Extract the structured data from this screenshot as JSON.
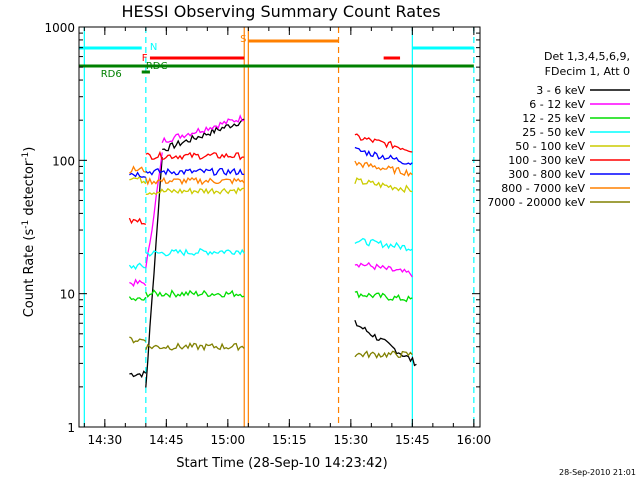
{
  "chart_data": {
    "type": "line",
    "title": "HESSI Observing Summary Count Rates",
    "xlabel": "Start Time (28-Sep-10 14:23:42)",
    "ylabel_main": "Count Rate (s",
    "ylabel_sup1": "-1",
    "ylabel_mid": " detector",
    "ylabel_sup2": "-1",
    "ylabel_end": ")",
    "yscale": "log",
    "xlim": [
      "14:23:42",
      "16:01:30"
    ],
    "ylim": [
      1,
      1000
    ],
    "x_ticks": [
      "14:30",
      "14:45",
      "15:00",
      "15:15",
      "15:30",
      "15:45",
      "16:00"
    ],
    "y_ticks": [
      "1",
      "10",
      "100",
      "1000"
    ],
    "timestamp": "28-Sep-2010 21:01",
    "legend_header": [
      "Det 1,3,4,5,6,9,",
      "FDecim 1, Att 0"
    ],
    "series": [
      {
        "name": "3 - 6 keV",
        "color": "#000000",
        "segments": [
          {
            "t0": "14:36",
            "t1": "14:40",
            "start": 2.5,
            "end": 2.5
          },
          {
            "t0": "14:40",
            "t1": "14:44",
            "start": 2,
            "end": 110
          },
          {
            "t0": "14:44",
            "t1": "15:04",
            "start": 120,
            "end": 200
          },
          {
            "t0": "15:31",
            "t1": "15:46",
            "start": 6,
            "end": 3
          }
        ]
      },
      {
        "name": "6 - 12 keV",
        "color": "#ff00ff",
        "segments": [
          {
            "t0": "14:36",
            "t1": "14:40",
            "start": 12,
            "end": 12
          },
          {
            "t0": "14:40",
            "t1": "14:44",
            "start": 15,
            "end": 110
          },
          {
            "t0": "14:44",
            "t1": "15:04",
            "start": 140,
            "end": 210
          },
          {
            "t0": "15:31",
            "t1": "15:45",
            "start": 17,
            "end": 14
          }
        ]
      },
      {
        "name": "12 - 25 keV",
        "color": "#00dd00",
        "segments": [
          {
            "t0": "14:36",
            "t1": "14:40",
            "start": 9,
            "end": 9
          },
          {
            "t0": "14:40",
            "t1": "15:04",
            "start": 10,
            "end": 10
          },
          {
            "t0": "15:31",
            "t1": "15:45",
            "start": 10,
            "end": 9
          }
        ]
      },
      {
        "name": "25 - 50 keV",
        "color": "#00ffff",
        "segments": [
          {
            "t0": "14:36",
            "t1": "14:40",
            "start": 16,
            "end": 16
          },
          {
            "t0": "14:40",
            "t1": "15:04",
            "start": 20,
            "end": 21
          },
          {
            "t0": "15:31",
            "t1": "15:45",
            "start": 25,
            "end": 22
          }
        ]
      },
      {
        "name": "50 - 100 keV",
        "color": "#cccc00",
        "segments": [
          {
            "t0": "14:36",
            "t1": "14:40",
            "start": 75,
            "end": 70
          },
          {
            "t0": "14:40",
            "t1": "15:04",
            "start": 58,
            "end": 60
          },
          {
            "t0": "15:31",
            "t1": "15:45",
            "start": 70,
            "end": 60
          }
        ]
      },
      {
        "name": "100 - 300 keV",
        "color": "#ff0000",
        "segments": [
          {
            "t0": "14:36",
            "t1": "14:40",
            "start": 35,
            "end": 35
          },
          {
            "t0": "14:40",
            "t1": "15:04",
            "start": 108,
            "end": 108
          },
          {
            "t0": "15:31",
            "t1": "15:45",
            "start": 150,
            "end": 120
          }
        ]
      },
      {
        "name": "300 - 800 keV",
        "color": "#0000ff",
        "segments": [
          {
            "t0": "14:36",
            "t1": "14:40",
            "start": 80,
            "end": 78
          },
          {
            "t0": "14:40",
            "t1": "15:04",
            "start": 82,
            "end": 82
          },
          {
            "t0": "15:31",
            "t1": "15:45",
            "start": 120,
            "end": 95
          }
        ]
      },
      {
        "name": "800 - 7000 keV",
        "color": "#ff8000",
        "segments": [
          {
            "t0": "14:36",
            "t1": "14:40",
            "start": 85,
            "end": 85
          },
          {
            "t0": "14:40",
            "t1": "15:04",
            "start": 70,
            "end": 70
          },
          {
            "t0": "15:31",
            "t1": "15:45",
            "start": 95,
            "end": 80
          }
        ]
      },
      {
        "name": "7000 - 20000 keV",
        "color": "#808000",
        "segments": [
          {
            "t0": "14:36",
            "t1": "14:40",
            "start": 4.5,
            "end": 4.5
          },
          {
            "t0": "14:40",
            "t1": "15:04",
            "start": 4,
            "end": 4
          },
          {
            "t0": "15:31",
            "t1": "15:45",
            "start": 3.5,
            "end": 3.5
          }
        ]
      }
    ],
    "markers": {
      "N": {
        "color": "#00ffff",
        "label": "N",
        "at": "14:41",
        "bars": [
          [
            "14:23:42",
            "14:39"
          ],
          [
            "15:45",
            "16:00"
          ]
        ]
      },
      "S": {
        "color": "#ff8000",
        "label": "S",
        "at": "15:03",
        "bars": [
          [
            "15:05",
            "15:27"
          ]
        ]
      },
      "F": {
        "color": "#ff0000",
        "label": "F",
        "at": "14:39",
        "bars": [
          [
            "14:41",
            "15:04"
          ],
          [
            "15:38",
            "15:42"
          ]
        ]
      },
      "RD": {
        "color": "#008000",
        "label": "RDC",
        "at": "14:40",
        "bars": [
          [
            "14:23:42",
            "16:00"
          ]
        ]
      },
      "RD6": {
        "color": "#008000",
        "label": "RD6",
        "at": "14:29",
        "bars": [
          [
            "14:39",
            "14:41"
          ]
        ]
      }
    },
    "vlines": [
      {
        "t": "14:25",
        "color": "#00ffff",
        "style": "solid"
      },
      {
        "t": "14:40",
        "color": "#00ffff",
        "style": "dashed"
      },
      {
        "t": "15:04",
        "color": "#ff8000",
        "style": "solid"
      },
      {
        "t": "15:05",
        "color": "#ff8000",
        "style": "solid"
      },
      {
        "t": "15:27",
        "color": "#ff8000",
        "style": "dashed"
      },
      {
        "t": "15:45",
        "color": "#00ffff",
        "style": "solid"
      },
      {
        "t": "16:00",
        "color": "#00ffff",
        "style": "dashed"
      }
    ]
  }
}
